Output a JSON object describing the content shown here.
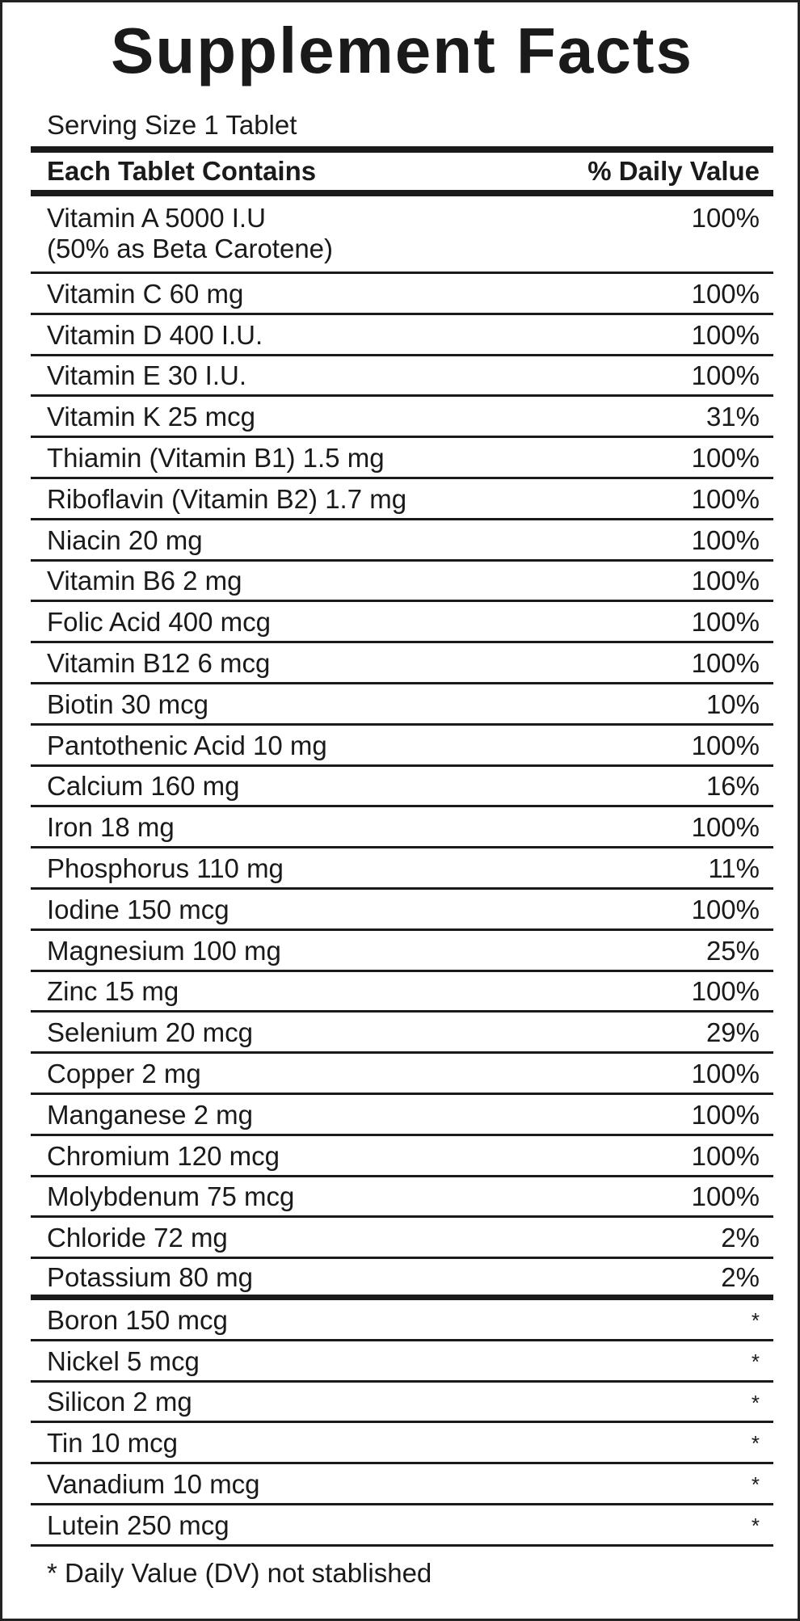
{
  "title": "Supplement Facts",
  "serving_size": "Serving Size 1 Tablet",
  "header": {
    "left": "Each Tablet Contains",
    "right": "% Daily Value"
  },
  "rows": [
    {
      "nutrient": "Vitamin A 5000 I.U",
      "note": "(50% as Beta Carotene)",
      "dv": "100%"
    },
    {
      "nutrient": "Vitamin C 60 mg",
      "dv": "100%"
    },
    {
      "nutrient": "Vitamin D 400 I.U.",
      "dv": "100%"
    },
    {
      "nutrient": "Vitamin E 30 I.U.",
      "dv": "100%"
    },
    {
      "nutrient": "Vitamin K 25 mcg",
      "dv": "31%"
    },
    {
      "nutrient": "Thiamin (Vitamin B1) 1.5 mg",
      "dv": "100%"
    },
    {
      "nutrient": "Riboflavin (Vitamin B2) 1.7 mg",
      "dv": "100%"
    },
    {
      "nutrient": "Niacin 20 mg",
      "dv": "100%"
    },
    {
      "nutrient": "Vitamin B6 2 mg",
      "dv": "100%"
    },
    {
      "nutrient": "Folic Acid 400 mcg",
      "dv": "100%"
    },
    {
      "nutrient": "Vitamin B12 6 mcg",
      "dv": "100%"
    },
    {
      "nutrient": "Biotin 30 mcg",
      "dv": "10%"
    },
    {
      "nutrient": "Pantothenic Acid 10 mg",
      "dv": "100%"
    },
    {
      "nutrient": "Calcium 160 mg",
      "dv": "16%"
    },
    {
      "nutrient": "Iron 18 mg",
      "dv": "100%"
    },
    {
      "nutrient": "Phosphorus 110 mg",
      "dv": "11%"
    },
    {
      "nutrient": "Iodine 150 mcg",
      "dv": "100%"
    },
    {
      "nutrient": "Magnesium 100 mg",
      "dv": "25%"
    },
    {
      "nutrient": "Zinc 15 mg",
      "dv": "100%"
    },
    {
      "nutrient": "Selenium 20 mcg",
      "dv": "29%"
    },
    {
      "nutrient": "Copper 2 mg",
      "dv": "100%"
    },
    {
      "nutrient": "Manganese 2 mg",
      "dv": "100%"
    },
    {
      "nutrient": "Chromium 120 mcg",
      "dv": "100%"
    },
    {
      "nutrient": "Molybdenum 75 mcg",
      "dv": "100%"
    },
    {
      "nutrient": "Chloride 72 mg",
      "dv": "2%"
    },
    {
      "nutrient": "Potassium 80 mg",
      "dv": "2%"
    },
    {
      "nutrient": "Boron 150 mcg",
      "dv": "*"
    },
    {
      "nutrient": "Nickel 5 mcg",
      "dv": "*"
    },
    {
      "nutrient": "Silicon 2 mg",
      "dv": "*"
    },
    {
      "nutrient": "Tin 10 mcg",
      "dv": "*"
    },
    {
      "nutrient": "Vanadium 10 mcg",
      "dv": "*"
    },
    {
      "nutrient": "Lutein 250 mcg",
      "dv": "*"
    }
  ],
  "footnote": "* Daily Value (DV) not stablished"
}
